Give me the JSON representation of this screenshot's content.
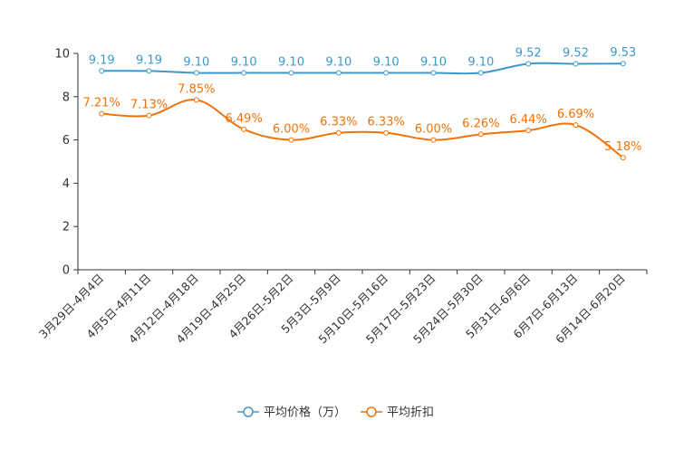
{
  "chart_data": {
    "type": "line",
    "title": "",
    "xlabel": "",
    "ylabel": "",
    "ylim": [
      0,
      10
    ],
    "yticks": [
      "0",
      "2",
      "4",
      "6",
      "8",
      "10"
    ],
    "grid": false,
    "legend_position": "bottom",
    "categories": [
      "3月29日-4月4日",
      "4月5日-4月11日",
      "4月12日-4月18日",
      "4月19日-4月25日",
      "4月26日-5月2日",
      "5月3日-5月9日",
      "5月10日-5月16日",
      "5月17日-5月23日",
      "5月24日-5月30日",
      "5月31日-6月6日",
      "6月7日-6月13日",
      "6月14日-6月20日"
    ],
    "series": [
      {
        "name": "平均价格（万）",
        "color": "#3c9ac9",
        "values": [
          9.19,
          9.19,
          9.1,
          9.1,
          9.1,
          9.1,
          9.1,
          9.1,
          9.1,
          9.52,
          9.52,
          9.53
        ],
        "labels": [
          "9.19",
          "9.19",
          "9.10",
          "9.10",
          "9.10",
          "9.10",
          "9.10",
          "9.10",
          "9.10",
          "9.52",
          "9.52",
          "9.53"
        ]
      },
      {
        "name": "平均折扣",
        "color": "#f0720a",
        "values": [
          7.21,
          7.13,
          7.85,
          6.49,
          6.0,
          6.33,
          6.33,
          6.0,
          6.26,
          6.44,
          6.69,
          5.18
        ],
        "labels": [
          "7.21%",
          "7.13%",
          "7.85%",
          "6.49%",
          "6.00%",
          "6.33%",
          "6.33%",
          "6.00%",
          "6.26%",
          "6.44%",
          "6.69%",
          "5.18%"
        ]
      }
    ]
  }
}
